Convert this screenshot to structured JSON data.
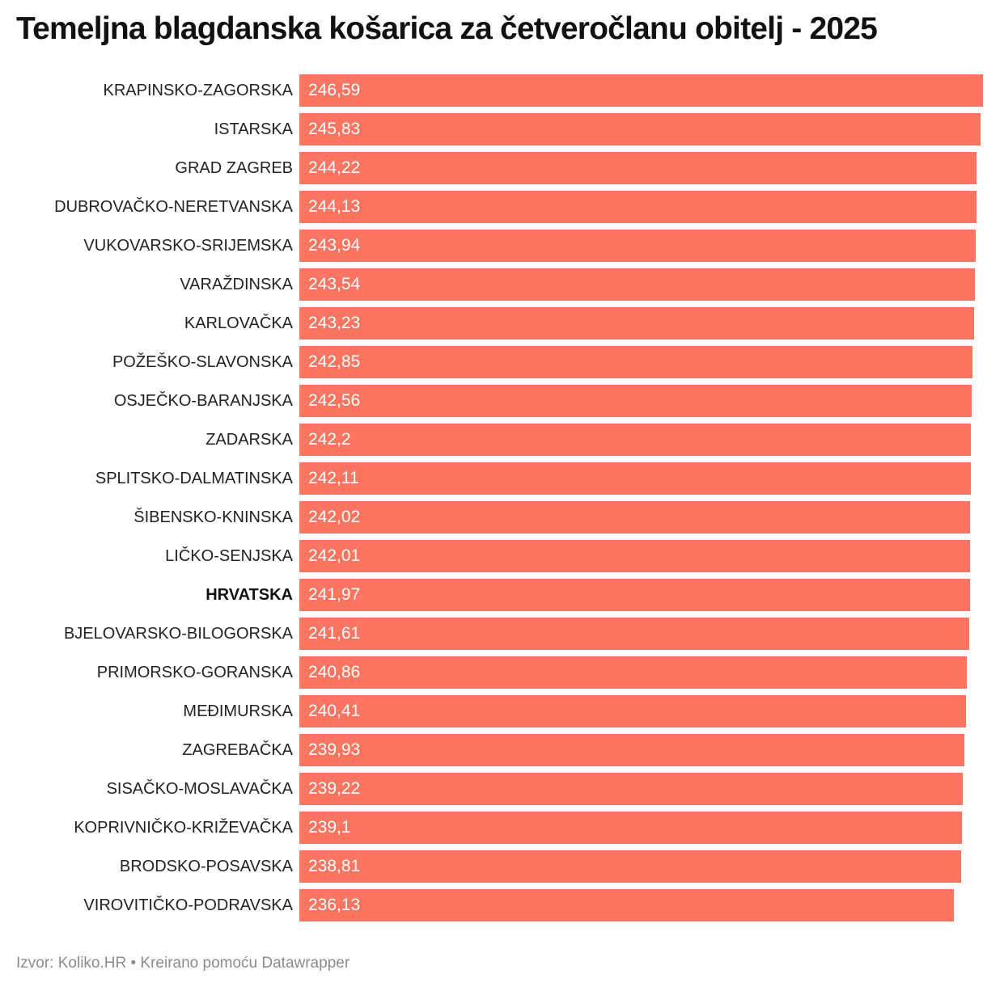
{
  "title": "Temeljna blagdanska košarica za četveročlanu obitelj - 2025",
  "footer": "Izvor: Koliko.HR • Kreirano pomoću Datawrapper",
  "colors": {
    "background": "#ffffff",
    "bar": "#fd7560",
    "value_text": "#ffffff",
    "label": "#222222",
    "label_bold": "#111111",
    "title": "#111111",
    "footer": "#8b8b8b"
  },
  "chart_data": {
    "type": "bar",
    "orientation": "horizontal",
    "title": "Temeljna blagdanska košarica za četveročlanu obitelj - 2025",
    "xlabel": "",
    "ylabel": "",
    "xlim": [
      0,
      246.59
    ],
    "grid": false,
    "legend": false,
    "bold_category": "HRVATSKA",
    "categories": [
      "KRAPINSKO-ZAGORSKA",
      "ISTARSKA",
      "GRAD ZAGREB",
      "DUBROVAČKO-NERETVANSKA",
      "VUKOVARSKO-SRIJEMSKA",
      "VARAŽDINSKA",
      "KARLOVAČKA",
      "POŽEŠKO-SLAVONSKA",
      "OSJEČKO-BARANJSKA",
      "ZADARSKA",
      "SPLITSKO-DALMATINSKA",
      "ŠIBENSKO-KNINSKA",
      "LIČKO-SENJSKA",
      "HRVATSKA",
      "BJELOVARSKO-BILOGORSKA",
      "PRIMORSKO-GORANSKA",
      "MEĐIMURSKA",
      "ZAGREBAČKA",
      "SISAČKO-MOSLAVAČKA",
      "KOPRIVNIČKO-KRIŽEVAČKA",
      "BRODSKO-POSAVSKA",
      "VIROVITIČKO-PODRAVSKA"
    ],
    "values": [
      246.59,
      245.83,
      244.22,
      244.13,
      243.94,
      243.54,
      243.23,
      242.85,
      242.56,
      242.2,
      242.11,
      242.02,
      242.01,
      241.97,
      241.61,
      240.86,
      240.41,
      239.93,
      239.22,
      239.1,
      238.81,
      236.13
    ],
    "value_labels": [
      "246,59",
      "245,83",
      "244,22",
      "244,13",
      "243,94",
      "243,54",
      "243,23",
      "242,85",
      "242,56",
      "242,2",
      "242,11",
      "242,02",
      "242,01",
      "241,97",
      "241,61",
      "240,86",
      "240,41",
      "239,93",
      "239,22",
      "239,1",
      "238,81",
      "236,13"
    ]
  }
}
